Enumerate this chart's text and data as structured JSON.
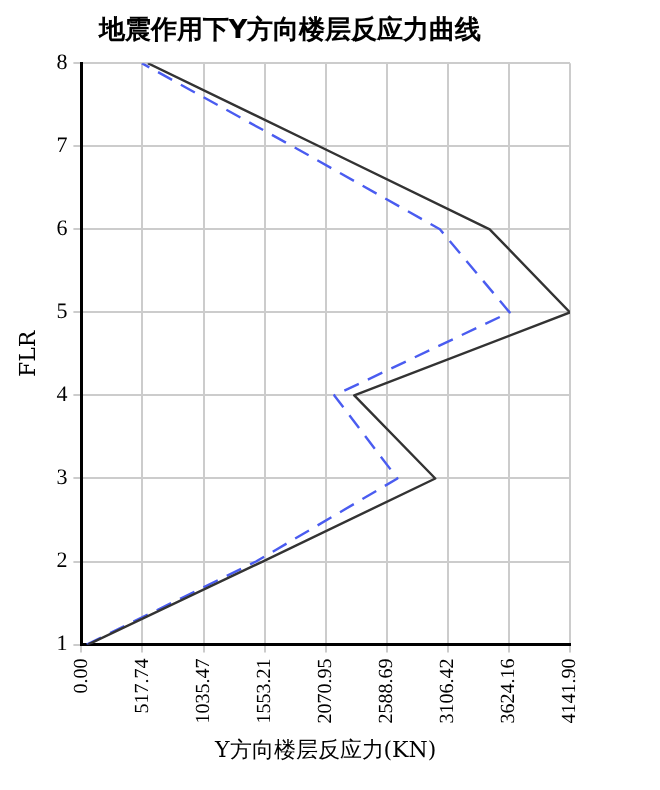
{
  "chart_data": {
    "type": "line",
    "title": "地震作用下Y方向楼层反应力曲线",
    "xlabel": "Y方向楼层反应力(KN)",
    "ylabel": "FLR",
    "xlim": [
      0,
      4141.9
    ],
    "xticks": [
      {
        "value": 0,
        "label": "0.00"
      },
      517.74,
      1035.47,
      1553.21,
      2070.95,
      2588.69,
      3106.42,
      3624.16,
      {
        "value": 4141.9,
        "label": "4141.90"
      }
    ],
    "ylim": [
      1,
      8
    ],
    "yticks": [
      1,
      2,
      3,
      4,
      5,
      6,
      7,
      8
    ],
    "grid": true,
    "legend": false,
    "marker": "none",
    "series": [
      {
        "color": "#333333",
        "line_style": "solid",
        "x": [
          56,
          1536,
          3000,
          2313,
          4141.9,
          3461,
          2015,
          563
        ],
        "values": [
          1,
          2,
          3,
          4,
          5,
          6,
          7,
          8
        ]
      },
      {
        "color": "#4a5cf0",
        "line_style": "dashed",
        "x": [
          45,
          1480,
          2679,
          2144,
          3630,
          3039,
          1790,
          512
        ],
        "values": [
          1,
          2,
          3,
          4,
          5,
          6,
          7,
          8
        ]
      }
    ]
  }
}
